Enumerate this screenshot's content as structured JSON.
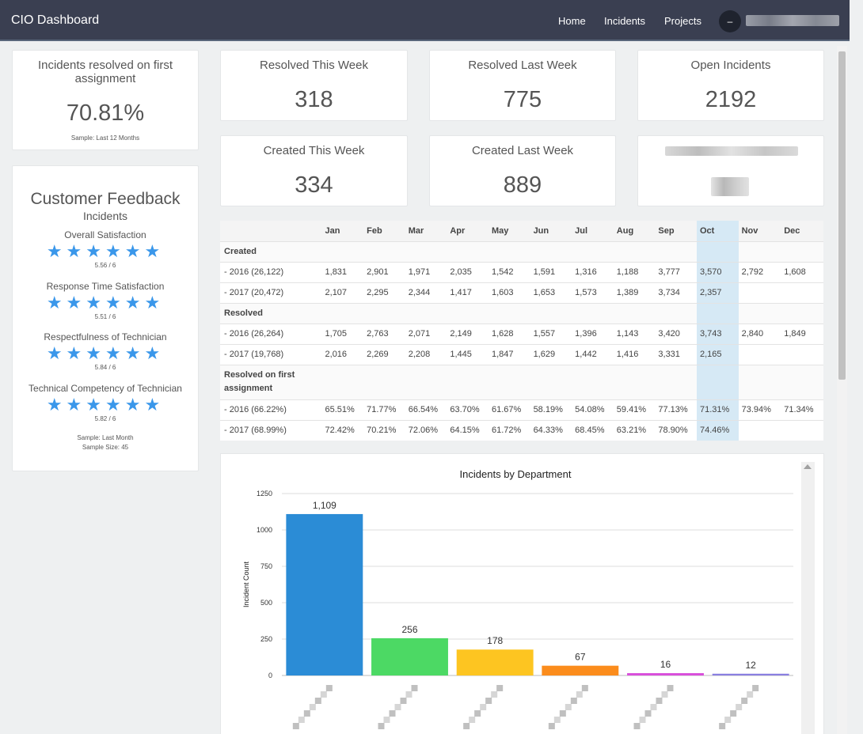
{
  "app": {
    "title": "CIO Dashboard"
  },
  "nav": {
    "home": "Home",
    "incidents": "Incidents",
    "projects": "Projects",
    "avatar": "–"
  },
  "first_assignment": {
    "title": "Incidents resolved on first assignment",
    "value": "70.81%",
    "sample": "Sample: Last 12 Months"
  },
  "stats": {
    "resolved_this_week": {
      "title": "Resolved This Week",
      "value": "318"
    },
    "resolved_last_week": {
      "title": "Resolved Last Week",
      "value": "775"
    },
    "open_incidents": {
      "title": "Open Incidents",
      "value": "2192"
    },
    "created_this_week": {
      "title": "Created This Week",
      "value": "334"
    },
    "created_last_week": {
      "title": "Created Last Week",
      "value": "889"
    }
  },
  "feedback": {
    "title": "Customer Feedback",
    "subtitle": "Incidents",
    "items": [
      {
        "label": "Overall Satisfaction",
        "stars": "★★★★★★",
        "score": "5.56 / 6"
      },
      {
        "label": "Response Time Satisfaction",
        "stars": "★★★★★★",
        "score": "5.51 / 6"
      },
      {
        "label": "Respectfulness of Technician",
        "stars": "★★★★★★",
        "score": "5.84 / 6"
      },
      {
        "label": "Technical Competency of Technician",
        "stars": "★★★★★★",
        "score": "5.82 / 6"
      }
    ],
    "sample_line1": "Sample: Last Month",
    "sample_line2": "Sample Size: 45"
  },
  "monthly_table": {
    "months": [
      "Jan",
      "Feb",
      "Mar",
      "Apr",
      "May",
      "Jun",
      "Jul",
      "Aug",
      "Sep",
      "Oct",
      "Nov",
      "Dec"
    ],
    "highlight_month": "Oct",
    "sections": [
      {
        "title": "Created",
        "rows": [
          {
            "label": "- 2016 (26,122)",
            "values": [
              "1,831",
              "2,901",
              "1,971",
              "2,035",
              "1,542",
              "1,591",
              "1,316",
              "1,188",
              "3,777",
              "3,570",
              "2,792",
              "1,608"
            ]
          },
          {
            "label": "- 2017 (20,472)",
            "values": [
              "2,107",
              "2,295",
              "2,344",
              "1,417",
              "1,603",
              "1,653",
              "1,573",
              "1,389",
              "3,734",
              "2,357",
              "",
              ""
            ]
          }
        ]
      },
      {
        "title": "Resolved",
        "rows": [
          {
            "label": "- 2016 (26,264)",
            "values": [
              "1,705",
              "2,763",
              "2,071",
              "2,149",
              "1,628",
              "1,557",
              "1,396",
              "1,143",
              "3,420",
              "3,743",
              "2,840",
              "1,849"
            ]
          },
          {
            "label": "- 2017 (19,768)",
            "values": [
              "2,016",
              "2,269",
              "2,208",
              "1,445",
              "1,847",
              "1,629",
              "1,442",
              "1,416",
              "3,331",
              "2,165",
              "",
              ""
            ]
          }
        ]
      },
      {
        "title": "Resolved on first assignment",
        "rows": [
          {
            "label": "- 2016 (66.22%)",
            "values": [
              "65.51%",
              "71.77%",
              "66.54%",
              "63.70%",
              "61.67%",
              "58.19%",
              "54.08%",
              "59.41%",
              "77.13%",
              "71.31%",
              "73.94%",
              "71.34%"
            ]
          },
          {
            "label": "- 2017 (68.99%)",
            "values": [
              "72.42%",
              "70.21%",
              "72.06%",
              "64.15%",
              "61.72%",
              "64.33%",
              "68.45%",
              "63.21%",
              "78.90%",
              "74.46%",
              "",
              ""
            ]
          }
        ]
      }
    ]
  },
  "colors": {
    "accent": "#3a97ea",
    "navbar": "#3a3f51",
    "highlight_column": "#d6e9f5"
  },
  "chart_data": {
    "type": "bar",
    "title": "Incidents by Department",
    "xlabel": "",
    "ylabel": "Incident Count",
    "ylim": [
      0,
      1250
    ],
    "yticks": [
      0,
      250,
      500,
      750,
      1000,
      1250
    ],
    "categories": [
      "",
      "",
      "",
      "",
      "",
      ""
    ],
    "values": [
      1109,
      256,
      178,
      67,
      16,
      12
    ],
    "value_labels": [
      "1,109",
      "256",
      "178",
      "67",
      "16",
      "12"
    ],
    "colors": [
      "#2b8cd6",
      "#4cd964",
      "#fdc521",
      "#fb8c1c",
      "#d94edb",
      "#8a7fe0"
    ],
    "grid": true,
    "legend": "none"
  }
}
